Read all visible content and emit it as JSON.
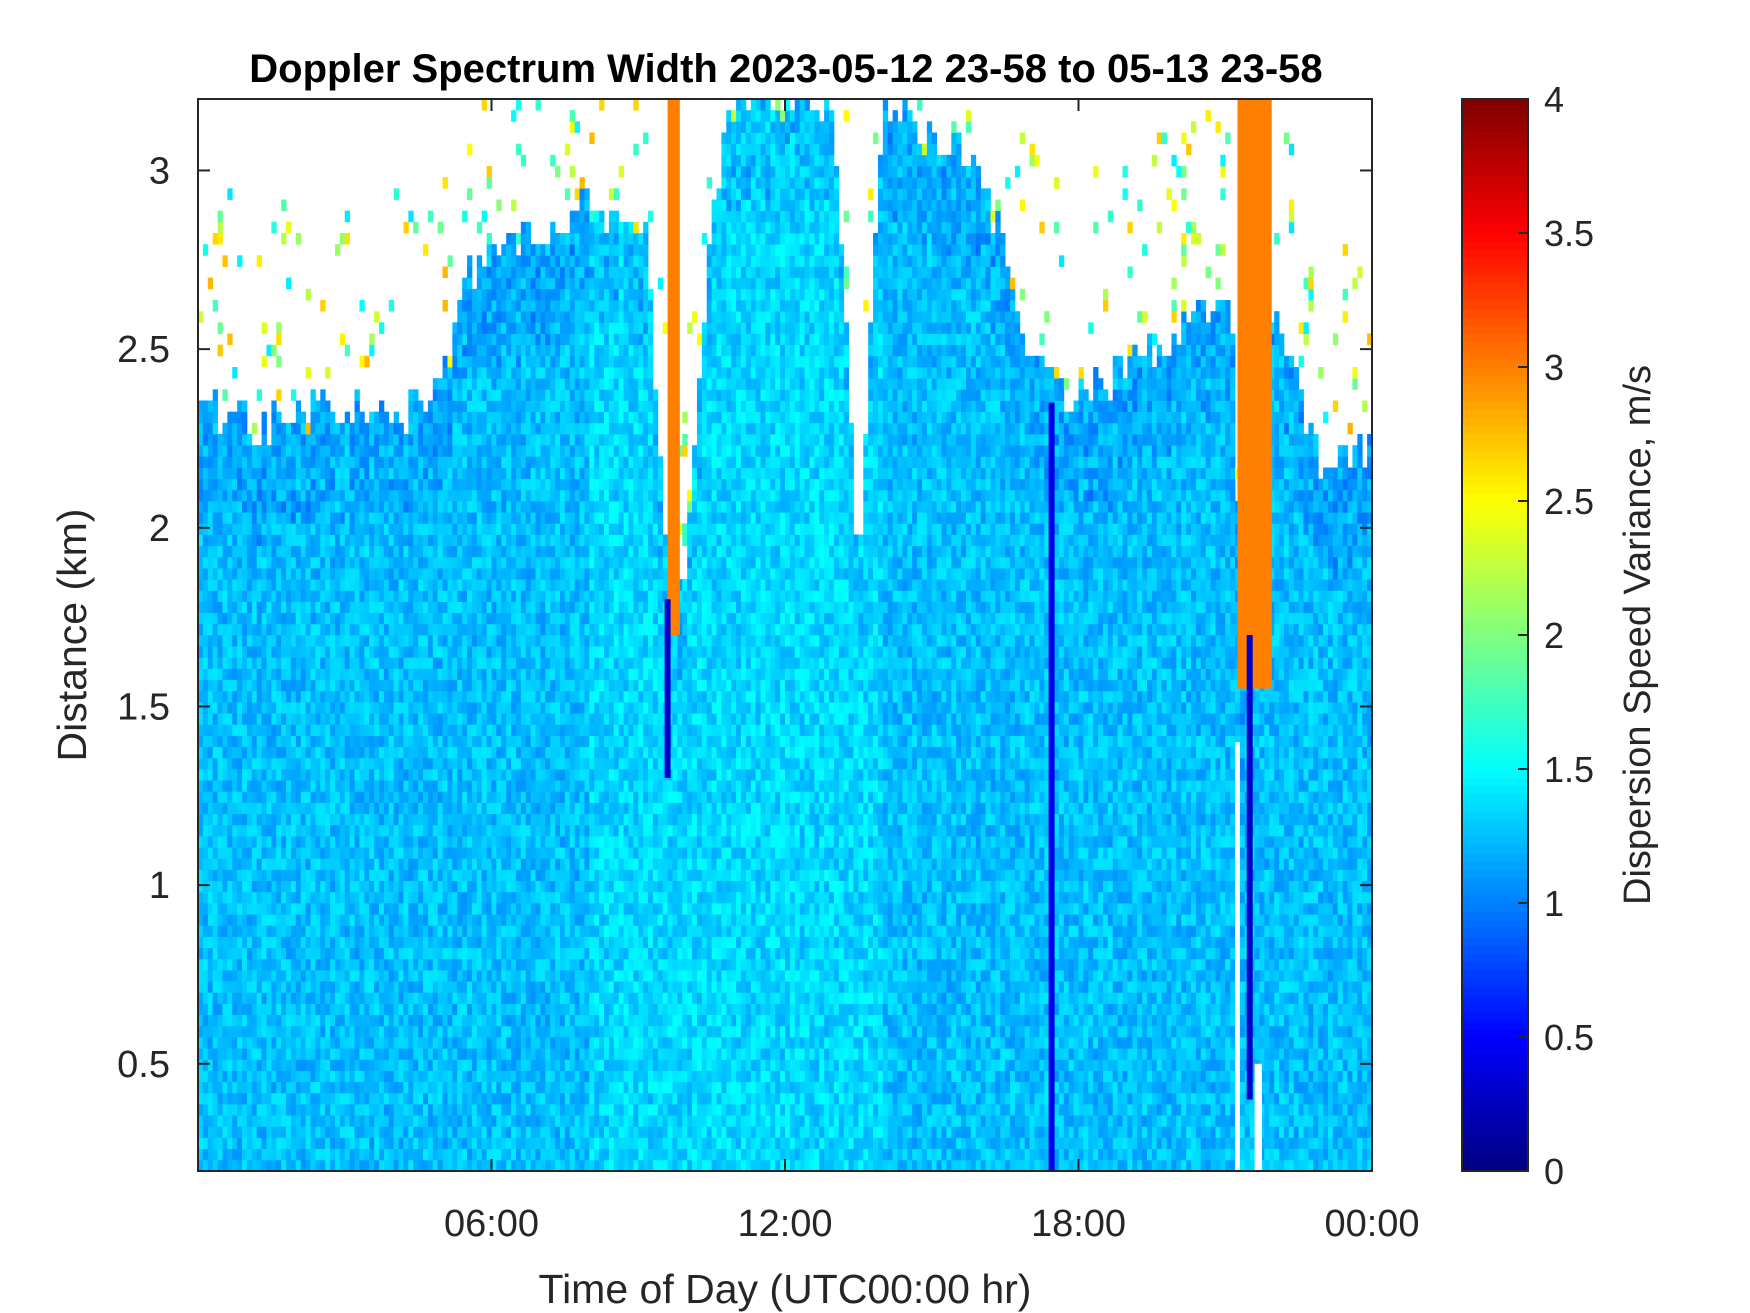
{
  "chart_data": {
    "type": "heatmap",
    "title": "Doppler Spectrum Width 2023-05-12 23-58 to 05-13 23-58",
    "xlabel": "Time of Day (UTC00:00 hr)",
    "ylabel": "Distance (km)",
    "x_unit": "hours",
    "xlim": [
      0,
      24
    ],
    "ylim": [
      0.2,
      3.2
    ],
    "x_ticks": [
      {
        "value": 6,
        "label": "06:00"
      },
      {
        "value": 12,
        "label": "12:00"
      },
      {
        "value": 18,
        "label": "18:00"
      },
      {
        "value": 24,
        "label": "00:00"
      }
    ],
    "y_ticks": [
      {
        "value": 0.5,
        "label": "0.5"
      },
      {
        "value": 1,
        "label": "1"
      },
      {
        "value": 1.5,
        "label": "1.5"
      },
      {
        "value": 2,
        "label": "2"
      },
      {
        "value": 2.5,
        "label": "2.5"
      },
      {
        "value": 3,
        "label": "3"
      }
    ],
    "grid": false,
    "colorbar": {
      "label": "Dispersion Speed Variance, m/s",
      "colormap": "jet",
      "clim": [
        0,
        4
      ],
      "ticks": [
        {
          "value": 0,
          "label": "0"
        },
        {
          "value": 0.5,
          "label": "0.5"
        },
        {
          "value": 1,
          "label": "1"
        },
        {
          "value": 1.5,
          "label": "1.5"
        },
        {
          "value": 2,
          "label": "2"
        },
        {
          "value": 2.5,
          "label": "2.5"
        },
        {
          "value": 3,
          "label": "3"
        },
        {
          "value": 3.5,
          "label": "3.5"
        },
        {
          "value": 4,
          "label": "4"
        }
      ]
    },
    "typical_value": 1.25,
    "signal_top_km": [
      [
        0.0,
        2.35
      ],
      [
        1.0,
        2.3
      ],
      [
        2.0,
        2.3
      ],
      [
        3.0,
        2.35
      ],
      [
        4.0,
        2.3
      ],
      [
        5.0,
        2.4
      ],
      [
        5.5,
        2.7
      ],
      [
        6.5,
        2.8
      ],
      [
        8.0,
        2.9
      ],
      [
        9.2,
        2.8
      ],
      [
        9.6,
        1.8
      ],
      [
        10.0,
        1.9
      ],
      [
        10.5,
        2.9
      ],
      [
        11.0,
        3.2
      ],
      [
        13.0,
        3.2
      ],
      [
        13.5,
        1.9
      ],
      [
        14.0,
        3.2
      ],
      [
        16.0,
        3.0
      ],
      [
        17.0,
        2.5
      ],
      [
        18.0,
        2.35
      ],
      [
        19.5,
        2.5
      ],
      [
        20.5,
        2.6
      ],
      [
        21.2,
        2.6
      ],
      [
        21.3,
        1.5
      ],
      [
        22.0,
        2.6
      ],
      [
        23.0,
        2.15
      ],
      [
        24.0,
        2.25
      ]
    ],
    "high_variance_bands": [
      {
        "x_start": 9.6,
        "x_end": 9.85,
        "y_bottom": 1.7,
        "y_top": 3.2,
        "value": 3.0
      },
      {
        "x_start": 21.25,
        "x_end": 21.95,
        "y_bottom": 1.55,
        "y_top": 3.2,
        "value": 3.0
      }
    ],
    "low_variance_columns": [
      {
        "x": 9.6,
        "y_bottom": 1.3,
        "y_top": 1.8,
        "value": 0.3
      },
      {
        "x": 17.45,
        "y_bottom": 0.2,
        "y_top": 2.35,
        "value": 0.4
      },
      {
        "x": 21.5,
        "y_bottom": 0.4,
        "y_top": 1.7,
        "value": 0.3
      }
    ],
    "no_data_columns": [
      {
        "x_start": 21.2,
        "x_end": 21.3,
        "y_bottom": 0.2,
        "y_top": 1.4
      },
      {
        "x_start": 21.6,
        "x_end": 21.75,
        "y_bottom": 0.2,
        "y_top": 0.5
      }
    ]
  }
}
